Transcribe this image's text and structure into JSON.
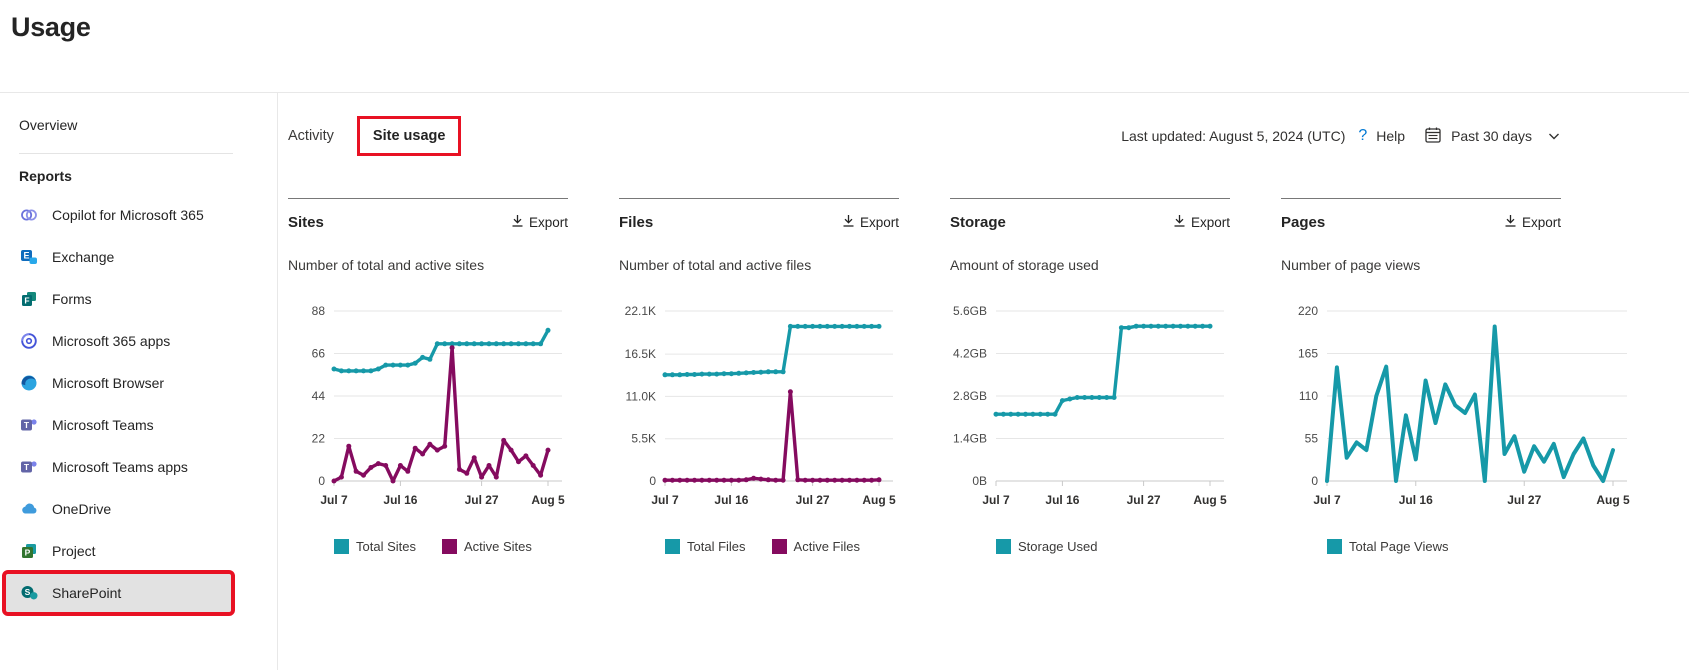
{
  "page": {
    "title": "Usage"
  },
  "sidebar": {
    "overview_label": "Overview",
    "section_label": "Reports",
    "items": [
      {
        "label": "Copilot for Microsoft 365",
        "icon": "copilot-icon"
      },
      {
        "label": "Exchange",
        "icon": "exchange-icon"
      },
      {
        "label": "Forms",
        "icon": "forms-icon"
      },
      {
        "label": "Microsoft 365 apps",
        "icon": "m365-apps-icon"
      },
      {
        "label": "Microsoft Browser",
        "icon": "edge-icon"
      },
      {
        "label": "Microsoft Teams",
        "icon": "teams-icon"
      },
      {
        "label": "Microsoft Teams apps",
        "icon": "teams-apps-icon"
      },
      {
        "label": "OneDrive",
        "icon": "onedrive-icon"
      },
      {
        "label": "Project",
        "icon": "project-icon"
      },
      {
        "label": "SharePoint",
        "icon": "sharepoint-icon",
        "selected": true,
        "annotated": true
      }
    ]
  },
  "tabs": {
    "activity": "Activity",
    "site_usage": "Site usage"
  },
  "meta": {
    "last_updated": "Last updated: August 5, 2024 (UTC)",
    "help_icon": "?",
    "help_label": "Help",
    "range_label": "Past 30 days"
  },
  "cards": {
    "export_label": "Export"
  },
  "colors": {
    "teal": "#1699a8",
    "magenta": "#850b5f",
    "annotation_red": "#e81123",
    "selected_bg": "#e2e2e2",
    "help_blue": "#0078d4"
  },
  "chart_data": [
    {
      "type": "line",
      "title": "Sites",
      "subtitle": "Number of total and active sites",
      "ymax": 88,
      "ylim": [
        0,
        88
      ],
      "yticks": [
        {
          "label": "0",
          "value": 0
        },
        {
          "label": "22",
          "value": 22
        },
        {
          "label": "44",
          "value": 44
        },
        {
          "label": "66",
          "value": 66
        },
        {
          "label": "88",
          "value": 88
        }
      ],
      "xticks": [
        {
          "label": "Jul 7",
          "index": 0
        },
        {
          "label": "Jul 16",
          "index": 9
        },
        {
          "label": "Jul 27",
          "index": 20
        },
        {
          "label": "Aug 5",
          "index": 29
        }
      ],
      "legend_position": "bottom",
      "series": [
        {
          "name": "Total Sites",
          "color": "#1699a8",
          "markers": true,
          "width": 3.4,
          "values": [
            58,
            57,
            57,
            57,
            57,
            57,
            58,
            60,
            60,
            60,
            60,
            61,
            64,
            63,
            71,
            71,
            71,
            71,
            71,
            71,
            71,
            71,
            71,
            71,
            71,
            71,
            71,
            71,
            71,
            78
          ]
        },
        {
          "name": "Active Sites",
          "color": "#850b5f",
          "markers": true,
          "width": 3.4,
          "values": [
            0,
            2,
            18,
            5,
            3,
            7,
            9,
            8,
            0,
            8,
            5,
            17,
            14,
            19,
            16,
            18,
            69,
            6,
            4,
            12,
            2,
            8,
            2,
            21,
            16,
            10,
            13,
            8,
            3,
            16
          ]
        }
      ]
    },
    {
      "type": "line",
      "title": "Files",
      "subtitle": "Number of total and active files",
      "ymax": 22100,
      "ylim": [
        0,
        22100
      ],
      "yticks": [
        {
          "label": "0",
          "value": 0
        },
        {
          "label": "5.5K",
          "value": 5500
        },
        {
          "label": "11.0K",
          "value": 11000
        },
        {
          "label": "16.5K",
          "value": 16500
        },
        {
          "label": "22.1K",
          "value": 22100
        }
      ],
      "xticks": [
        {
          "label": "Jul 7",
          "index": 0
        },
        {
          "label": "Jul 16",
          "index": 9
        },
        {
          "label": "Jul 27",
          "index": 20
        },
        {
          "label": "Aug 5",
          "index": 29
        }
      ],
      "legend_position": "bottom",
      "series": [
        {
          "name": "Total Files",
          "color": "#1699a8",
          "markers": true,
          "width": 3.4,
          "values": [
            13800,
            13800,
            13800,
            13850,
            13850,
            13900,
            13900,
            13900,
            13950,
            13950,
            14000,
            14050,
            14100,
            14150,
            14200,
            14200,
            14200,
            20100,
            20100,
            20100,
            20100,
            20100,
            20100,
            20100,
            20100,
            20100,
            20100,
            20100,
            20100,
            20100
          ]
        },
        {
          "name": "Active Files",
          "color": "#850b5f",
          "markers": true,
          "width": 3.4,
          "values": [
            100,
            100,
            100,
            100,
            100,
            100,
            100,
            100,
            100,
            100,
            100,
            150,
            350,
            250,
            150,
            100,
            100,
            11600,
            150,
            100,
            100,
            100,
            100,
            100,
            100,
            100,
            100,
            100,
            100,
            150
          ]
        }
      ]
    },
    {
      "type": "line",
      "title": "Storage",
      "subtitle": "Amount of storage used",
      "ymax": 5.6,
      "ylim": [
        0,
        5.6
      ],
      "yticks": [
        {
          "label": "0B",
          "value": 0
        },
        {
          "label": "1.4GB",
          "value": 1.4
        },
        {
          "label": "2.8GB",
          "value": 2.8
        },
        {
          "label": "4.2GB",
          "value": 4.2
        },
        {
          "label": "5.6GB",
          "value": 5.6
        }
      ],
      "xticks": [
        {
          "label": "Jul 7",
          "index": 0
        },
        {
          "label": "Jul 16",
          "index": 9
        },
        {
          "label": "Jul 27",
          "index": 20
        },
        {
          "label": "Aug 5",
          "index": 29
        }
      ],
      "legend_position": "bottom",
      "series": [
        {
          "name": "Storage Used",
          "color": "#1699a8",
          "markers": true,
          "width": 3.4,
          "values": [
            2.2,
            2.2,
            2.2,
            2.2,
            2.2,
            2.2,
            2.2,
            2.2,
            2.2,
            2.65,
            2.7,
            2.75,
            2.75,
            2.75,
            2.75,
            2.75,
            2.75,
            5.05,
            5.05,
            5.1,
            5.1,
            5.1,
            5.1,
            5.1,
            5.1,
            5.1,
            5.1,
            5.1,
            5.1,
            5.1
          ]
        }
      ]
    },
    {
      "type": "line",
      "title": "Pages",
      "subtitle": "Number of page views",
      "ymax": 220,
      "ylim": [
        0,
        220
      ],
      "yticks": [
        {
          "label": "0",
          "value": 0
        },
        {
          "label": "55",
          "value": 55
        },
        {
          "label": "110",
          "value": 110
        },
        {
          "label": "165",
          "value": 165
        },
        {
          "label": "220",
          "value": 220
        }
      ],
      "xticks": [
        {
          "label": "Jul 7",
          "index": 0
        },
        {
          "label": "Jul 16",
          "index": 9
        },
        {
          "label": "Jul 27",
          "index": 20
        },
        {
          "label": "Aug 5",
          "index": 29
        }
      ],
      "legend_position": "bottom",
      "series": [
        {
          "name": "Total Page Views",
          "color": "#1699a8",
          "markers": false,
          "width": 4,
          "values": [
            0,
            147,
            30,
            50,
            40,
            110,
            148,
            0,
            85,
            28,
            130,
            75,
            125,
            98,
            88,
            112,
            0,
            200,
            35,
            58,
            12,
            45,
            25,
            48,
            5,
            35,
            55,
            20,
            0,
            40
          ]
        }
      ]
    }
  ]
}
